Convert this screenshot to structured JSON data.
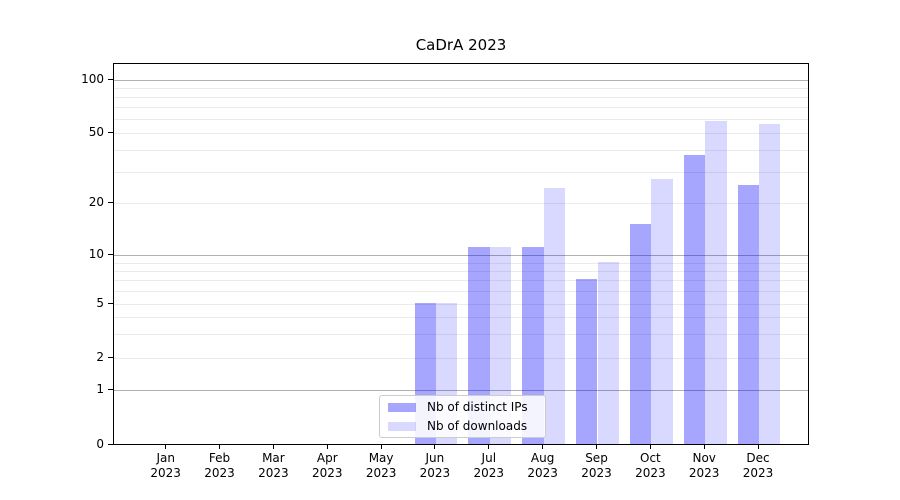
{
  "chart_data": {
    "type": "bar",
    "title": "CaDrA 2023",
    "xlabel": "",
    "ylabel": "",
    "year_label": "2023",
    "categories": [
      "Jan",
      "Feb",
      "Mar",
      "Apr",
      "May",
      "Jun",
      "Jul",
      "Aug",
      "Sep",
      "Oct",
      "Nov",
      "Dec"
    ],
    "series": [
      {
        "name": "Nb of distinct IPs",
        "color": "rgba(0,0,255,0.35)",
        "values": [
          0,
          0,
          0,
          0,
          0,
          5,
          11,
          11,
          7,
          15,
          37,
          25
        ]
      },
      {
        "name": "Nb of downloads",
        "color": "rgba(0,0,255,0.15)",
        "values": [
          0,
          0,
          0,
          0,
          0,
          5,
          11,
          24,
          9,
          27,
          58,
          56
        ]
      }
    ],
    "yscale": "pseudo-log",
    "ylim": [
      0,
      126
    ],
    "yticks": [
      "0",
      "1",
      "2",
      "5",
      "10",
      "20",
      "50",
      "100"
    ],
    "ytick_values": [
      0,
      1,
      2,
      5,
      10,
      20,
      50,
      100
    ],
    "minor_grid_values": [
      2,
      3,
      4,
      5,
      6,
      7,
      8,
      9,
      20,
      30,
      40,
      50,
      60,
      70,
      80,
      90
    ],
    "major_grid_values": [
      1,
      10,
      100
    ],
    "grid": true,
    "legend_position": "bottom-center"
  },
  "colors": {
    "background": "#ffffff",
    "spine": "#000000",
    "major_grid": "#b0b0b0",
    "minor_grid": "#ebebeb",
    "text": "#000000",
    "legend_border": "#cccccc",
    "legend_background": "rgba(255,255,255,0.88)"
  }
}
